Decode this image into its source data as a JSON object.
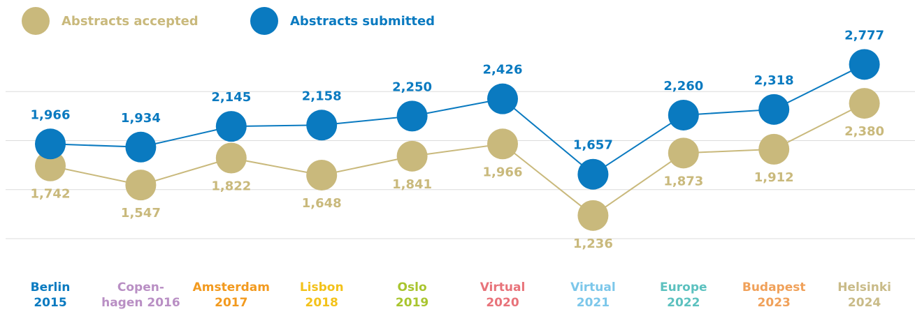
{
  "chart_data": {
    "type": "line",
    "categories": [
      "Berlin\n2015",
      "Copen-\nhagen 2016",
      "Amsterdam\n2017",
      "Lisbon\n2018",
      "Oslo\n2019",
      "Virtual\n2020",
      "Virtual\n2021",
      "Europe\n2022",
      "Budapest\n2023",
      "Helsinki\n2024"
    ],
    "category_colors": [
      "#0a7ac0",
      "#b98fc4",
      "#f29a1f",
      "#f3c21b",
      "#a9c52f",
      "#e8737a",
      "#7cc7ea",
      "#5cc1bf",
      "#f0a15a",
      "#c9bb88"
    ],
    "series": [
      {
        "name": "Abstracts accepted",
        "color": "#c9b97c",
        "values": [
          1742,
          1547,
          1822,
          1648,
          1841,
          1966,
          1236,
          1873,
          1912,
          2380
        ],
        "value_labels": [
          "1,742",
          "1,547",
          "1,822",
          "1,648",
          "1,841",
          "1,966",
          "1,236",
          "1,873",
          "1,912",
          "2,380"
        ]
      },
      {
        "name": "Abstracts submitted",
        "color": "#0a7ac0",
        "values": [
          1966,
          1934,
          2145,
          2158,
          2250,
          2426,
          1657,
          2260,
          2318,
          2777
        ],
        "value_labels": [
          "1,966",
          "1,934",
          "2,145",
          "2,158",
          "2,250",
          "2,426",
          "1,657",
          "2,260",
          "2,318",
          "2,777"
        ]
      }
    ],
    "ylim": [
      1000,
      3000
    ],
    "yticks": [
      1000,
      1500,
      2000,
      2500
    ],
    "grid": true
  }
}
